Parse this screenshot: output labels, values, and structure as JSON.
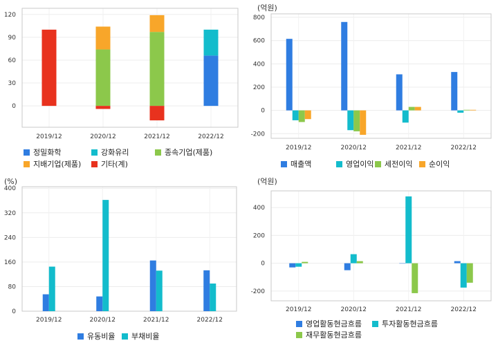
{
  "chart_data": [
    {
      "type": "bar",
      "stacked": true,
      "categories": [
        "2019/12",
        "2020/12",
        "2021/12",
        "2022/12"
      ],
      "ylim": [
        -28,
        128
      ],
      "yticks": [
        0,
        30,
        60,
        90,
        120
      ],
      "unit": "",
      "series": [
        {
          "name": "정밀화학",
          "color": "#2f7de1",
          "values": [
            0,
            0,
            0,
            66
          ]
        },
        {
          "name": "강화유리",
          "color": "#13bccc",
          "values": [
            0,
            0,
            0,
            34
          ]
        },
        {
          "name": "종속기업(제품)",
          "color": "#8cc84b",
          "values": [
            0,
            74,
            97,
            0
          ]
        },
        {
          "name": "지배기업(제품)",
          "color": "#f8a62a",
          "values": [
            0,
            30,
            22,
            0
          ]
        },
        {
          "name": "기타(계)",
          "color": "#e8321e",
          "values": [
            100,
            -4,
            -19,
            0
          ]
        }
      ]
    },
    {
      "type": "bar",
      "categories": [
        "2019/12",
        "2020/12",
        "2021/12",
        "2022/12"
      ],
      "ylim": [
        -240,
        830
      ],
      "yticks": [
        -200,
        0,
        200,
        400,
        600,
        800
      ],
      "unit": "(억원)",
      "series": [
        {
          "name": "매출액",
          "color": "#2f7de1",
          "values": [
            615,
            760,
            310,
            330
          ]
        },
        {
          "name": "영업이익",
          "color": "#13bccc",
          "values": [
            -85,
            -170,
            -105,
            -20
          ]
        },
        {
          "name": "세전이익",
          "color": "#8cc84b",
          "values": [
            -100,
            -180,
            30,
            5
          ]
        },
        {
          "name": "순이익",
          "color": "#f8a62a",
          "values": [
            -75,
            -210,
            30,
            5
          ]
        }
      ]
    },
    {
      "type": "bar",
      "categories": [
        "2019/12",
        "2020/12",
        "2021/12",
        "2022/12"
      ],
      "ylim": [
        0,
        405
      ],
      "yticks": [
        0,
        80,
        160,
        240,
        320,
        400
      ],
      "unit": "(%)",
      "series": [
        {
          "name": "유동비율",
          "color": "#2f7de1",
          "values": [
            55,
            48,
            165,
            133
          ]
        },
        {
          "name": "부채비율",
          "color": "#13bccc",
          "values": [
            145,
            362,
            132,
            90
          ]
        }
      ]
    },
    {
      "type": "bar",
      "categories": [
        "2019/12",
        "2020/12",
        "2021/12",
        "2022/12"
      ],
      "ylim": [
        -270,
        520
      ],
      "yticks": [
        -200,
        0,
        200,
        400
      ],
      "unit": "(억원)",
      "series": [
        {
          "name": "영업활동현금흐름",
          "color": "#2f7de1",
          "values": [
            -30,
            -50,
            0,
            15
          ]
        },
        {
          "name": "투자활동현금흐름",
          "color": "#13bccc",
          "values": [
            -25,
            65,
            480,
            -175
          ]
        },
        {
          "name": "재무활동현금흐름",
          "color": "#8cc84b",
          "values": [
            10,
            15,
            -215,
            -140
          ]
        }
      ]
    }
  ]
}
